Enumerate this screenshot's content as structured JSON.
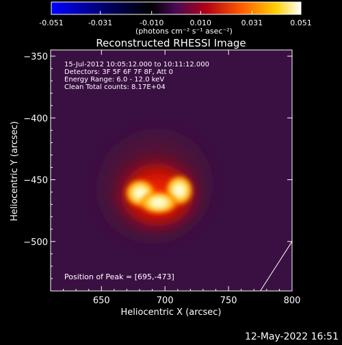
{
  "colorbar": {
    "ticks": [
      "-0.051",
      "-0.031",
      "-0.010",
      "0.010",
      "0.031",
      "0.051"
    ],
    "tick_values": [
      -0.051,
      -0.031,
      -0.01,
      0.01,
      0.031,
      0.051
    ],
    "range": [
      -0.051,
      0.051
    ],
    "units": "(photons cm⁻² s⁻¹ asec⁻²)",
    "colormap": "rhessi (blue-black-purple-red-yellow-white)"
  },
  "chart_data": {
    "type": "heatmap",
    "title": "Reconstructed RHESSI Image",
    "xlabel": "Heliocentric X (arcsec)",
    "ylabel": "Heliocentric Y (arcsec)",
    "xlim": [
      610,
      800
    ],
    "ylim": [
      -540,
      -345
    ],
    "x_ticks": [
      650,
      700,
      750,
      800
    ],
    "y_ticks": [
      -350,
      -400,
      -450,
      -500
    ],
    "annotations": [
      "15-Jul-2012 10:05:12.000 to 10:11:12.000",
      "Detectors: 3F 5F 6F 7F 8F, Att 0",
      "Energy Range: 6.0 - 12.0 keV",
      "Clean    Total counts: 8.17E+04"
    ],
    "peak_label": "Position of Peak = [695,-473]",
    "peak": [
      695,
      -473
    ],
    "total_counts": 81700,
    "energy_range_kev": [
      6.0,
      12.0
    ],
    "limb_line": [
      [
        775,
        -540
      ],
      [
        800,
        -500
      ]
    ]
  },
  "footer": {
    "date": "12-May-2022 16:51"
  },
  "colors": {
    "background": "#000000",
    "plot_background": "#3a1042",
    "foreground": "#ffffff"
  }
}
